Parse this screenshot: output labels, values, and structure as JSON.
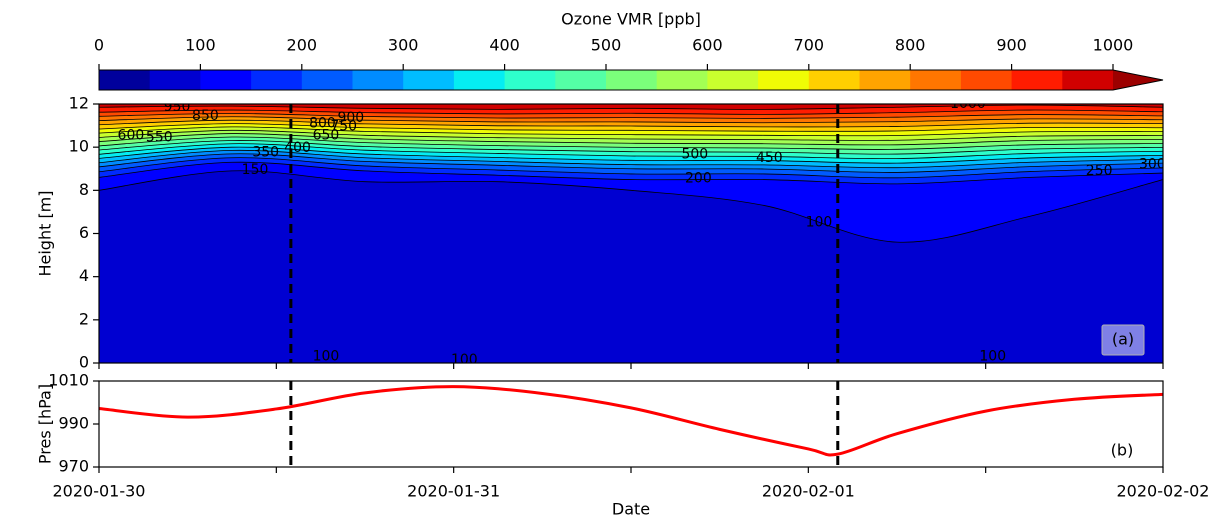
{
  "chart_data": [
    {
      "type": "contour",
      "colorbar": {
        "label": "Ozone VMR [ppb]",
        "levels": [
          0,
          50,
          100,
          150,
          200,
          250,
          300,
          350,
          400,
          450,
          500,
          550,
          600,
          650,
          700,
          750,
          800,
          850,
          900,
          950,
          1000
        ],
        "ticks": [
          0,
          100,
          200,
          300,
          400,
          500,
          600,
          700,
          800,
          900,
          1000
        ],
        "colors": [
          "#00009c",
          "#0000d1",
          "#0000ff",
          "#002bff",
          "#005bff",
          "#008cff",
          "#00bdff",
          "#05edf2",
          "#2effcc",
          "#54ffa6",
          "#7bff7b",
          "#a3ff54",
          "#c9ff2e",
          "#f0fc05",
          "#ffcf00",
          "#ffa300",
          "#ff7600",
          "#ff4a00",
          "#ff1c00",
          "#d10000"
        ],
        "extend_color": "#9c0000"
      },
      "x": [
        0,
        0.375,
        0.75,
        1.125,
        1.5,
        1.875,
        2.25,
        2.625,
        3
      ],
      "xlim": [
        0,
        3
      ],
      "xticks": [
        0,
        0.5,
        1,
        1.5,
        2,
        2.5,
        3
      ],
      "ylim": [
        0,
        12
      ],
      "yticks": [
        0,
        2,
        4,
        6,
        8,
        10,
        12
      ],
      "ylabel": "Height [m]",
      "levels": [
        100,
        150,
        200,
        250,
        300,
        350,
        400,
        450,
        500,
        550,
        600,
        650,
        700,
        750,
        800,
        850,
        900,
        950
      ],
      "heights": [
        [
          8.0,
          8.9,
          8.4,
          8.4,
          8.0,
          7.3,
          5.6,
          6.8,
          8.5
        ],
        [
          8.6,
          9.3,
          8.9,
          8.7,
          8.5,
          8.5,
          8.3,
          8.6,
          8.8
        ],
        [
          8.86,
          9.51,
          9.13,
          8.94,
          8.76,
          8.76,
          8.58,
          8.87,
          9.04
        ],
        [
          9.09,
          9.69,
          9.34,
          9.16,
          9.0,
          8.99,
          8.83,
          9.1,
          9.26
        ],
        [
          9.28,
          9.85,
          9.51,
          9.34,
          9.19,
          9.18,
          9.05,
          9.3,
          9.44
        ],
        [
          9.48,
          10.0,
          9.68,
          9.52,
          9.39,
          9.38,
          9.26,
          9.5,
          9.62
        ],
        [
          9.67,
          10.16,
          9.86,
          9.71,
          9.59,
          9.57,
          9.47,
          9.71,
          9.81
        ],
        [
          9.87,
          10.31,
          10.03,
          9.89,
          9.79,
          9.77,
          9.68,
          9.91,
          9.99
        ],
        [
          10.06,
          10.47,
          10.21,
          10.07,
          9.99,
          9.96,
          9.9,
          10.11,
          10.17
        ],
        [
          10.26,
          10.63,
          10.38,
          10.26,
          10.18,
          10.16,
          10.11,
          10.31,
          10.36
        ],
        [
          10.45,
          10.78,
          10.55,
          10.44,
          10.38,
          10.35,
          10.32,
          10.51,
          10.54
        ],
        [
          10.65,
          10.94,
          10.73,
          10.62,
          10.58,
          10.55,
          10.54,
          10.71,
          10.72
        ],
        [
          10.84,
          11.09,
          10.9,
          10.8,
          10.78,
          10.74,
          10.75,
          10.91,
          10.9
        ],
        [
          11.04,
          11.25,
          11.08,
          10.99,
          10.98,
          10.94,
          10.96,
          11.11,
          11.09
        ],
        [
          11.23,
          11.41,
          11.25,
          11.17,
          11.17,
          11.13,
          11.18,
          11.31,
          11.27
        ],
        [
          11.43,
          11.56,
          11.42,
          11.35,
          11.37,
          11.33,
          11.39,
          11.51,
          11.45
        ],
        [
          11.62,
          11.72,
          11.6,
          11.54,
          11.57,
          11.52,
          11.6,
          11.72,
          11.64
        ],
        [
          11.85,
          11.9,
          11.8,
          11.75,
          11.8,
          11.75,
          11.85,
          11.95,
          11.85
        ]
      ],
      "line_color": "#000000",
      "contour_labels": [
        {
          "value": 950,
          "x": 0.22,
          "y": 11.85
        },
        {
          "value": 850,
          "x": 0.3,
          "y": 11.45
        },
        {
          "value": 600,
          "x": 0.09,
          "y": 10.55
        },
        {
          "value": 550,
          "x": 0.17,
          "y": 10.45
        },
        {
          "value": 350,
          "x": 0.47,
          "y": 9.75
        },
        {
          "value": 400,
          "x": 0.56,
          "y": 9.95
        },
        {
          "value": 150,
          "x": 0.44,
          "y": 8.95
        },
        {
          "value": 800,
          "x": 0.63,
          "y": 11.1
        },
        {
          "value": 900,
          "x": 0.71,
          "y": 11.35
        },
        {
          "value": 750,
          "x": 0.69,
          "y": 10.95
        },
        {
          "value": 650,
          "x": 0.64,
          "y": 10.55
        },
        {
          "value": 500,
          "x": 1.68,
          "y": 9.65
        },
        {
          "value": 450,
          "x": 1.89,
          "y": 9.5
        },
        {
          "value": 200,
          "x": 1.69,
          "y": 8.55
        },
        {
          "value": 100,
          "x": 2.03,
          "y": 6.5
        },
        {
          "value": 250,
          "x": 2.82,
          "y": 8.9
        },
        {
          "value": 300,
          "x": 2.97,
          "y": 9.2
        },
        {
          "value": 1000,
          "x": 2.45,
          "y": 12.0
        },
        {
          "value": 100,
          "x": 0.64,
          "y": 0.3
        },
        {
          "value": 100,
          "x": 1.03,
          "y": 0.15
        },
        {
          "value": 100,
          "x": 2.52,
          "y": 0.3
        }
      ],
      "vlines": [
        0.541,
        2.083
      ],
      "panel_label": "(a)"
    },
    {
      "type": "line",
      "x": [
        0,
        0.25,
        0.5,
        0.75,
        1,
        1.25,
        1.5,
        1.75,
        2,
        2.083,
        2.25,
        2.5,
        2.75,
        3
      ],
      "values": [
        997.2,
        993.2,
        997,
        1004.5,
        1007.4,
        1004.2,
        997.5,
        987.5,
        978.4,
        976,
        985.5,
        996,
        1001.5,
        1003.8
      ],
      "color": "#ff0000",
      "xlim": [
        0,
        3
      ],
      "xticks": [
        {
          "value": 0,
          "label": "2020-01-30"
        },
        {
          "value": 1,
          "label": "2020-01-31"
        },
        {
          "value": 2,
          "label": "2020-02-01"
        },
        {
          "value": 3,
          "label": "2020-02-02"
        }
      ],
      "xminor": [
        0.5,
        1.5,
        2.5
      ],
      "xlabel": "Date",
      "ylim": [
        970,
        1010
      ],
      "yticks": [
        970,
        990,
        1010
      ],
      "ylabel": "Pres [hPa]",
      "vlines": [
        0.541,
        2.083
      ],
      "panel_label": "(b)"
    }
  ]
}
